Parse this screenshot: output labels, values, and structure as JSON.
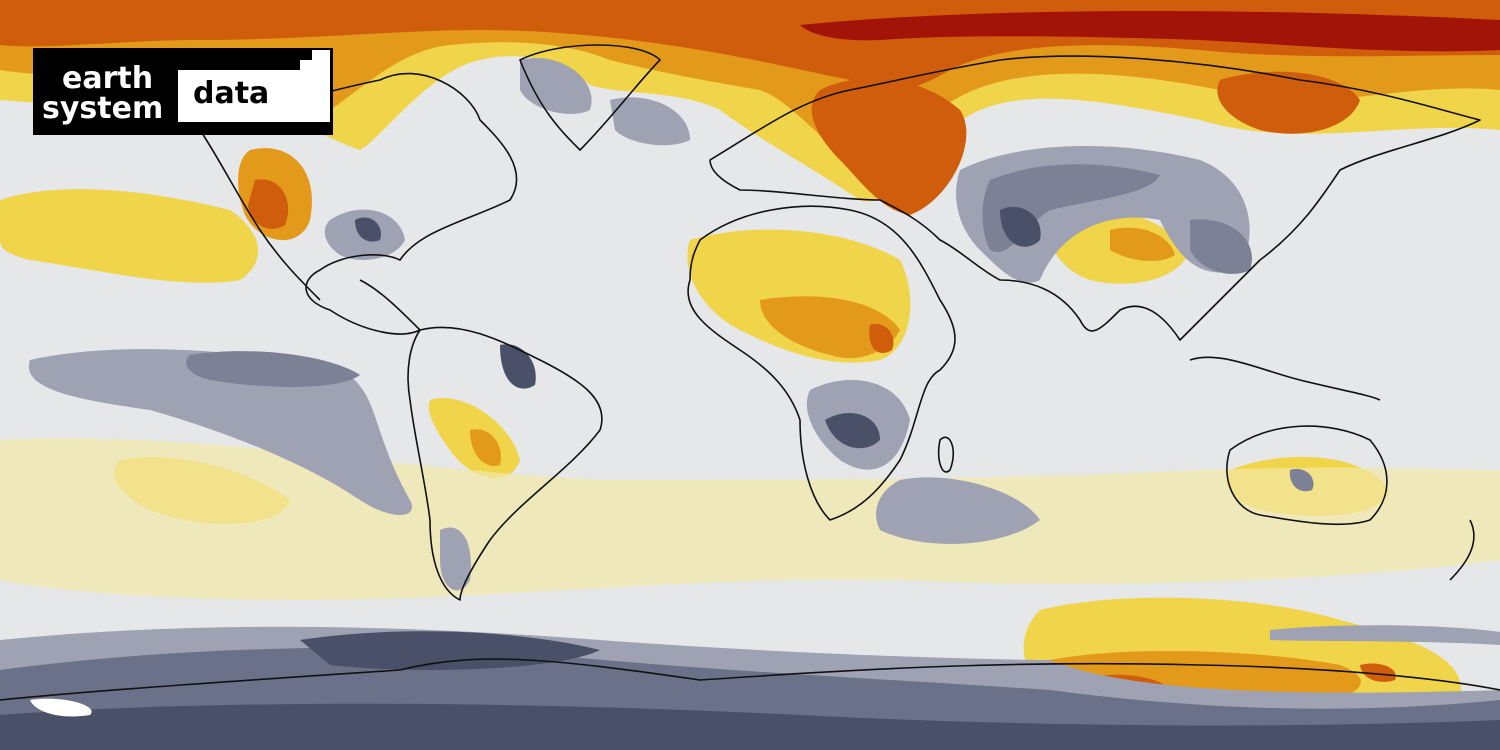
{
  "logo": {
    "line1": "earth",
    "line2": "system",
    "badge": "data"
  }
}
